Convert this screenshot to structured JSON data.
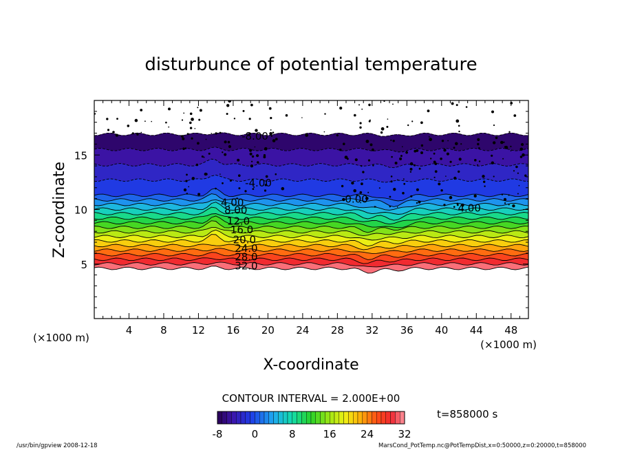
{
  "chart_data": {
    "type": "contour",
    "title": "disturbunce of potential temperature",
    "xlabel": "X-coordinate",
    "ylabel": "Z-coordinate",
    "x_unit_left": "(×1000 m)",
    "x_unit_right": "(×1000 m)",
    "xlim": [
      0,
      50
    ],
    "ylim": [
      0,
      20
    ],
    "x_ticks": [
      4,
      8,
      12,
      16,
      20,
      24,
      28,
      32,
      36,
      40,
      44,
      48
    ],
    "y_ticks": [
      5,
      10,
      15
    ],
    "contour_labels": [
      {
        "text": "-8.00",
        "x": 18.5,
        "z": 16.7
      },
      {
        "text": "-4.00",
        "x": 18.9,
        "z": 12.4
      },
      {
        "text": "4.00",
        "x": 15.9,
        "z": 10.6
      },
      {
        "text": "8.00",
        "x": 16.3,
        "z": 9.9
      },
      {
        "text": "12.0",
        "x": 16.6,
        "z": 8.9
      },
      {
        "text": "16.0",
        "x": 17.0,
        "z": 8.1
      },
      {
        "text": "20.0",
        "x": 17.3,
        "z": 7.2
      },
      {
        "text": "24.0",
        "x": 17.5,
        "z": 6.4
      },
      {
        "text": "28.0",
        "x": 17.5,
        "z": 5.6
      },
      {
        "text": "32.0",
        "x": 17.5,
        "z": 4.8
      },
      {
        "text": "0.00",
        "x": 30.2,
        "z": 10.9
      },
      {
        "text": "4.00",
        "x": 43.2,
        "z": 10.1
      }
    ],
    "contour_interval_text": "CONTOUR INTERVAL = 2.000E+00",
    "time_text": "t=858000 s",
    "colorbar": {
      "min": -8,
      "max": 32,
      "ticks": [
        "-8",
        "0",
        "8",
        "16",
        "24",
        "32"
      ]
    },
    "footer_left": "/usr/bin/gpview   2008-12-18",
    "footer_right": "MarsCond_PotTemp.nc@PotTempDist,x=0:50000,z=0:20000,t=858000"
  }
}
